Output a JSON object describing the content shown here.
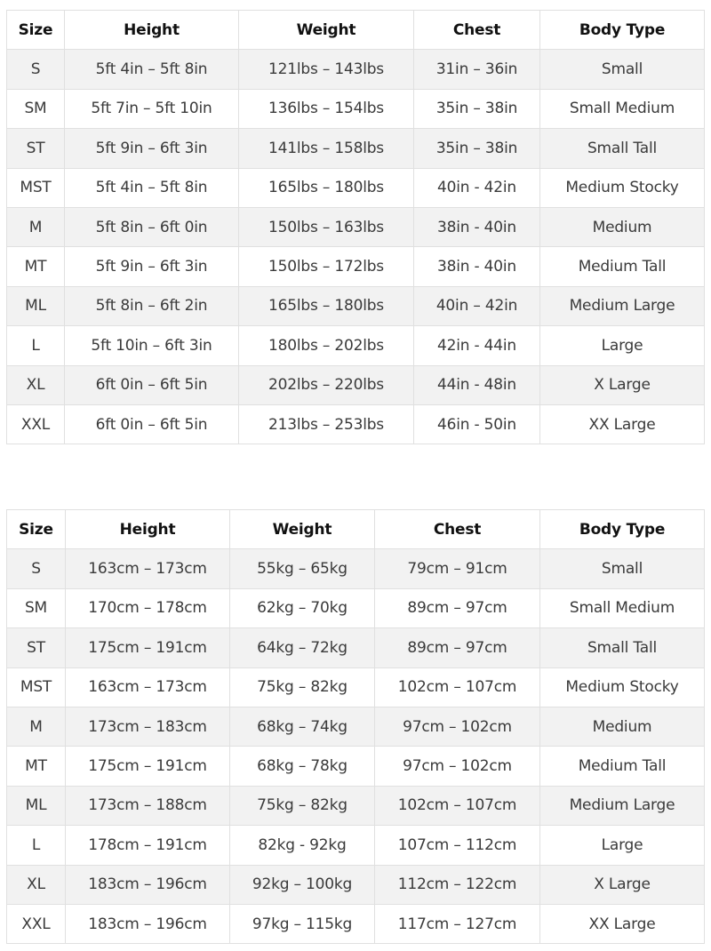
{
  "imperial": {
    "headers": [
      "Size",
      "Height",
      "Weight",
      "Chest",
      "Body Type"
    ],
    "rows": [
      [
        "S",
        "5ft 4in – 5ft 8in",
        "121lbs – 143lbs",
        "31in – 36in",
        "Small"
      ],
      [
        "SM",
        "5ft 7in – 5ft 10in",
        "136lbs – 154lbs",
        "35in – 38in",
        "Small Medium"
      ],
      [
        "ST",
        "5ft 9in – 6ft 3in",
        "141lbs – 158lbs",
        "35in – 38in",
        "Small Tall"
      ],
      [
        "MST",
        "5ft 4in – 5ft 8in",
        "165lbs – 180lbs",
        "40in - 42in",
        "Medium Stocky"
      ],
      [
        "M",
        "5ft 8in – 6ft 0in",
        "150lbs – 163lbs",
        "38in - 40in",
        "Medium"
      ],
      [
        "MT",
        "5ft 9in – 6ft 3in",
        "150lbs – 172lbs",
        "38in - 40in",
        "Medium Tall"
      ],
      [
        "ML",
        "5ft 8in – 6ft 2in",
        "165lbs – 180lbs",
        "40in – 42in",
        "Medium Large"
      ],
      [
        "L",
        "5ft 10in – 6ft 3in",
        "180lbs – 202lbs",
        "42in - 44in",
        "Large"
      ],
      [
        "XL",
        "6ft 0in – 6ft 5in",
        "202lbs – 220lbs",
        "44in - 48in",
        "X Large"
      ],
      [
        "XXL",
        "6ft 0in – 6ft 5in",
        "213lbs – 253lbs",
        "46in - 50in",
        "XX Large"
      ]
    ]
  },
  "metric": {
    "headers": [
      "Size",
      "Height",
      "Weight",
      "Chest",
      "Body Type"
    ],
    "rows": [
      [
        "S",
        "163cm – 173cm",
        "55kg – 65kg",
        "79cm – 91cm",
        "Small"
      ],
      [
        "SM",
        "170cm – 178cm",
        "62kg – 70kg",
        "89cm – 97cm",
        "Small Medium"
      ],
      [
        "ST",
        "175cm – 191cm",
        "64kg – 72kg",
        "89cm – 97cm",
        "Small Tall"
      ],
      [
        "MST",
        "163cm – 173cm",
        "75kg – 82kg",
        "102cm – 107cm",
        "Medium Stocky"
      ],
      [
        "M",
        "173cm – 183cm",
        "68kg – 74kg",
        "97cm – 102cm",
        "Medium"
      ],
      [
        "MT",
        "175cm – 191cm",
        "68kg – 78kg",
        "97cm – 102cm",
        "Medium Tall"
      ],
      [
        "ML",
        "173cm – 188cm",
        "75kg – 82kg",
        "102cm – 107cm",
        "Medium Large"
      ],
      [
        "L",
        "178cm – 191cm",
        "82kg - 92kg",
        "107cm – 112cm",
        "Large"
      ],
      [
        "XL",
        "183cm – 196cm",
        "92kg – 100kg",
        "112cm – 122cm",
        "X Large"
      ],
      [
        "XXL",
        "183cm – 196cm",
        "97kg – 115kg",
        "117cm – 127cm",
        "XX Large"
      ]
    ]
  }
}
